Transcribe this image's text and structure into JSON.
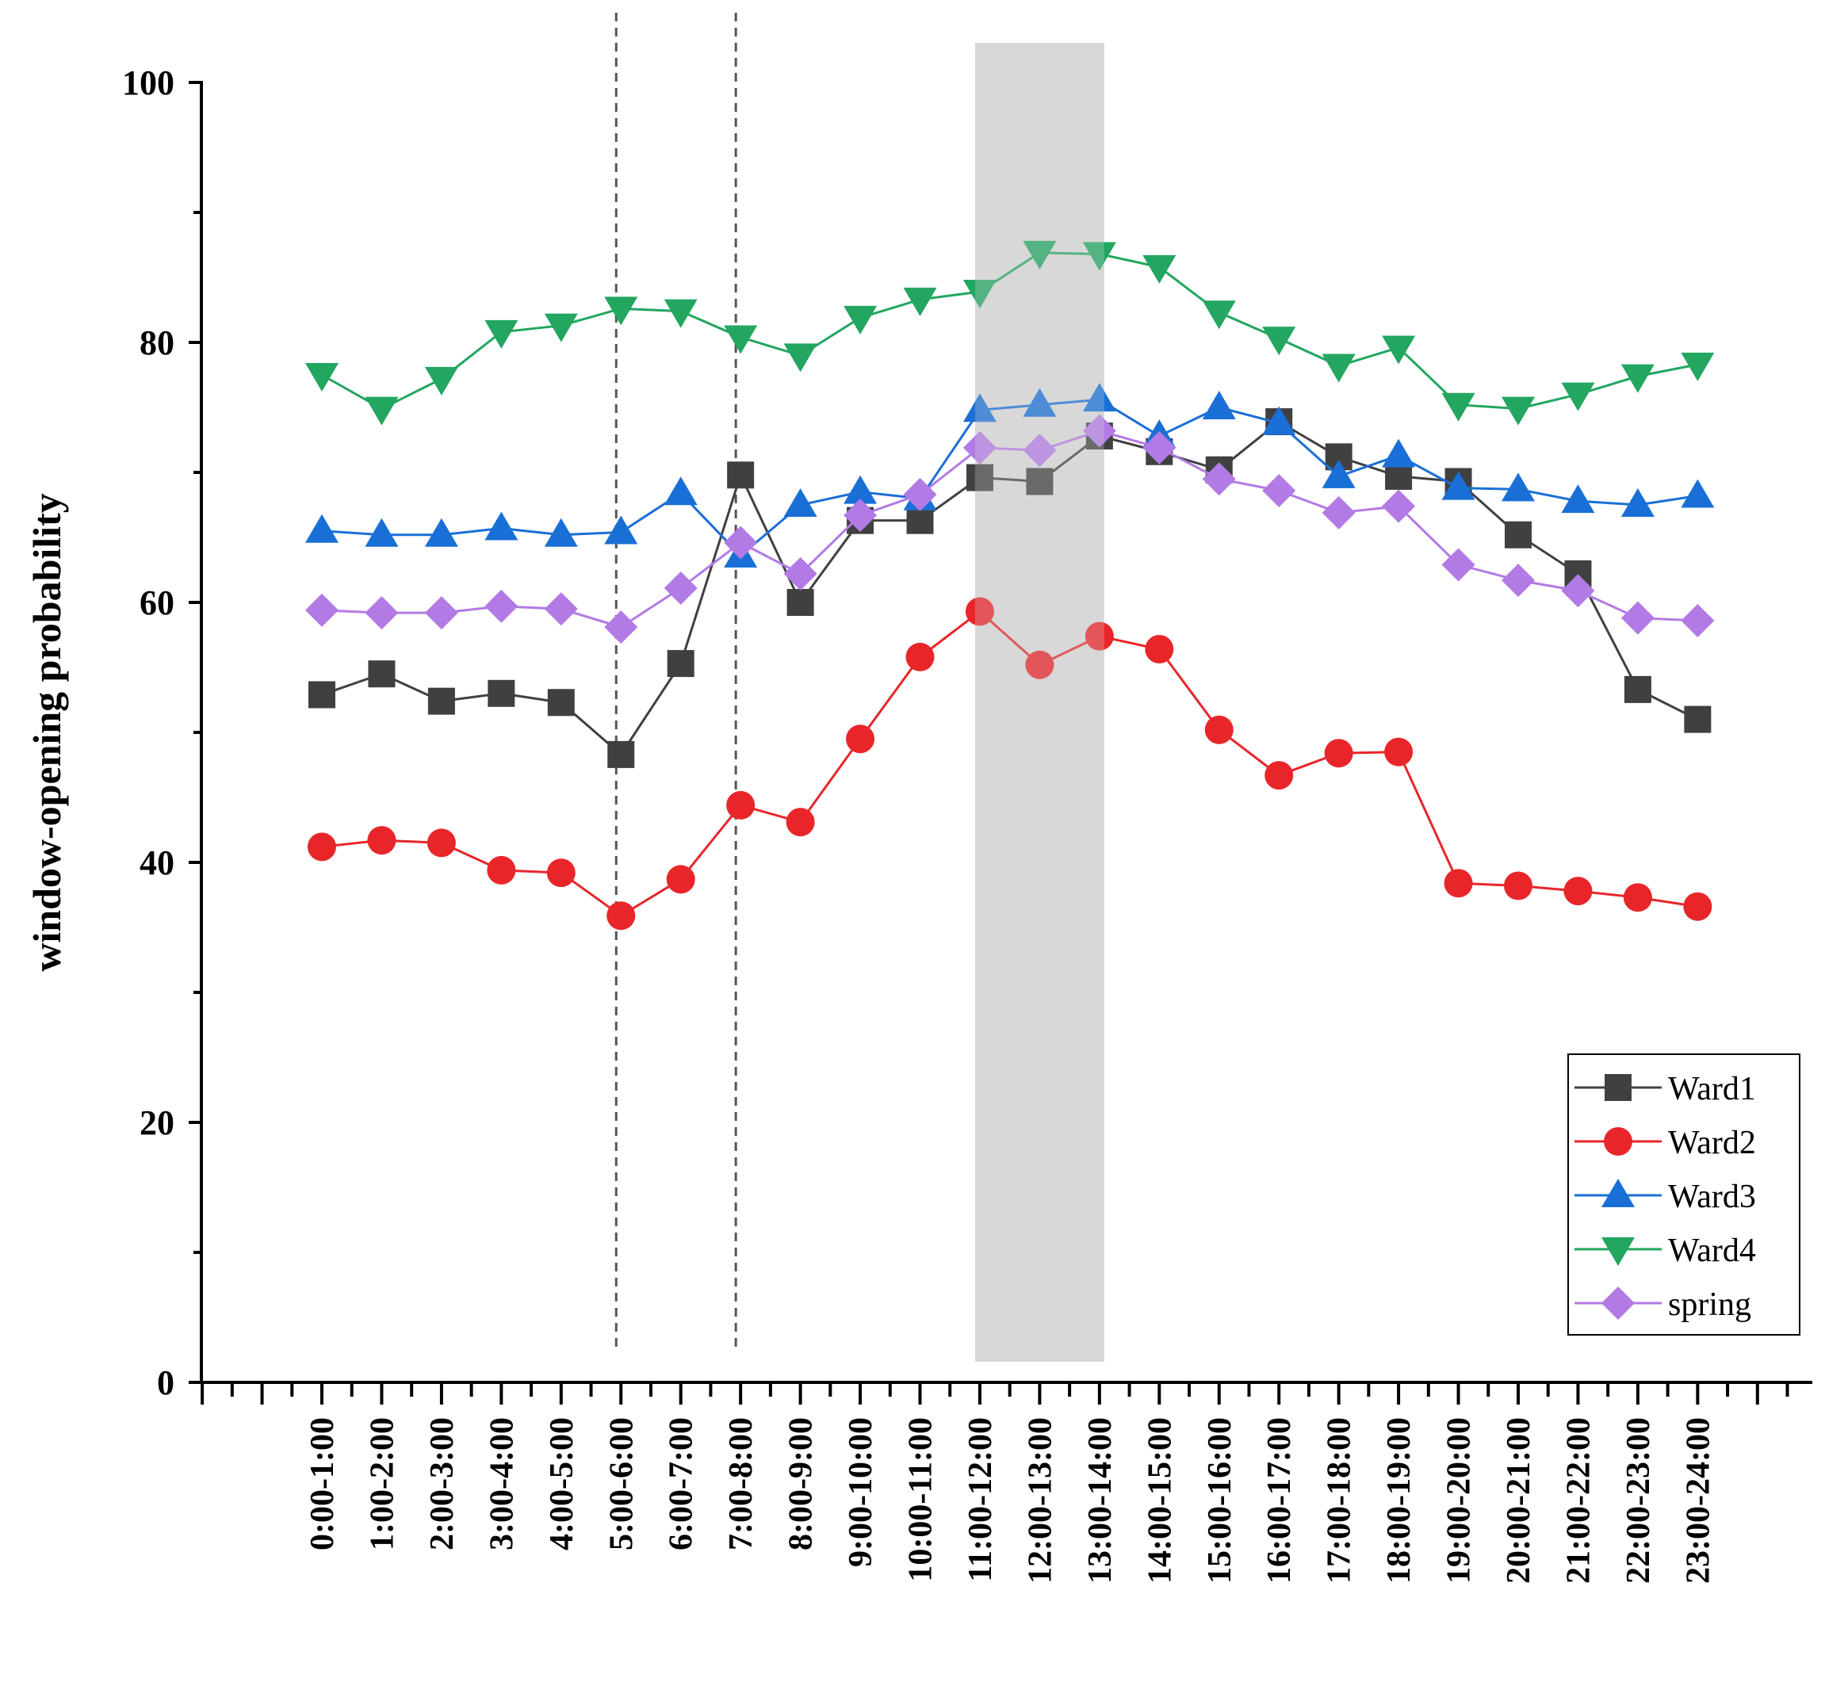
{
  "chart_data": {
    "type": "line",
    "title": "",
    "xlabel": "",
    "ylabel": "window-opening probability",
    "ylim": [
      0,
      100
    ],
    "yticks": [
      0,
      20,
      40,
      60,
      80,
      100
    ],
    "grid": false,
    "legend_position": "bottom-right",
    "categories": [
      "0:00-1:00",
      "1:00-2:00",
      "2:00-3:00",
      "3:00-4:00",
      "4:00-5:00",
      "5:00-6:00",
      "6:00-7:00",
      "7:00-8:00",
      "8:00-9:00",
      "9:00-10:00",
      "10:00-11:00",
      "11:00-12:00",
      "12:00-13:00",
      "13:00-14:00",
      "14:00-15:00",
      "15:00-16:00",
      "16:00-17:00",
      "17:00-18:00",
      "18:00-19:00",
      "19:00-20:00",
      "20:00-21:00",
      "21:00-22:00",
      "22:00-23:00",
      "23:00-24:00"
    ],
    "annotations": {
      "dashed_lines_at_category_boundaries": [
        "5:00-6:00",
        "7:00-8:00"
      ],
      "shaded_band": {
        "from": "11:00-12:00",
        "to": "13:00-14:00",
        "color": "#d9d9d9"
      }
    },
    "series": [
      {
        "name": "Ward1",
        "color": "#404040",
        "marker": "square",
        "values": [
          52.9,
          54.5,
          52.4,
          53.0,
          52.3,
          48.3,
          55.3,
          69.8,
          60.0,
          66.3,
          66.3,
          69.6,
          69.3,
          72.8,
          71.6,
          70.2,
          73.9,
          71.2,
          69.7,
          69.3,
          65.2,
          62.2,
          53.3,
          51.0
        ]
      },
      {
        "name": "Ward2",
        "color": "#e8262a",
        "marker": "circle",
        "values": [
          41.2,
          41.7,
          41.5,
          39.4,
          39.2,
          35.9,
          38.7,
          44.4,
          43.1,
          49.5,
          55.8,
          59.3,
          55.2,
          57.4,
          56.4,
          50.2,
          46.7,
          48.4,
          48.5,
          38.4,
          38.2,
          37.8,
          37.3,
          36.6
        ]
      },
      {
        "name": "Ward3",
        "color": "#1a6fd6",
        "marker": "triangle-up",
        "values": [
          65.5,
          65.2,
          65.2,
          65.7,
          65.2,
          65.4,
          68.4,
          63.6,
          67.5,
          68.5,
          68.0,
          74.8,
          75.2,
          75.6,
          72.8,
          75.0,
          73.8,
          69.7,
          71.3,
          68.8,
          68.7,
          67.8,
          67.5,
          68.2
        ]
      },
      {
        "name": "Ward4",
        "color": "#22a660",
        "marker": "triangle-down",
        "values": [
          77.5,
          74.9,
          77.2,
          80.8,
          81.3,
          82.6,
          82.4,
          80.4,
          79.0,
          81.9,
          83.3,
          83.9,
          86.9,
          86.8,
          85.8,
          82.3,
          80.3,
          78.2,
          79.6,
          75.2,
          74.9,
          76.0,
          77.4,
          78.3
        ]
      },
      {
        "name": "spring",
        "color": "#b27ae4",
        "marker": "diamond",
        "values": [
          59.4,
          59.2,
          59.2,
          59.7,
          59.5,
          58.1,
          61.1,
          64.6,
          62.2,
          66.7,
          68.3,
          71.9,
          71.7,
          73.2,
          71.9,
          69.5,
          68.6,
          66.9,
          67.4,
          62.9,
          61.7,
          60.9,
          58.8,
          58.6
        ]
      }
    ]
  }
}
